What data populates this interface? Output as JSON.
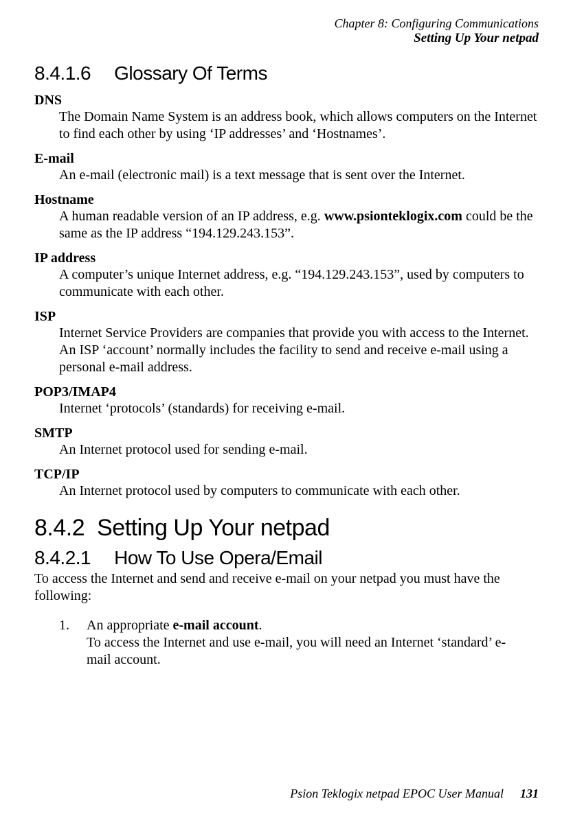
{
  "header": {
    "chapter": "Chapter 8:  Configuring Communications",
    "section": "Setting Up Your netpad"
  },
  "h1": {
    "num": "8.4.1.6",
    "title": "Glossary Of Terms"
  },
  "glossary": [
    {
      "term": "DNS",
      "def": "The Domain Name System is an address book, which allows computers on the Internet to find each other by using ‘IP addresses’ and ‘Hostnames’."
    },
    {
      "term": "E-mail",
      "def": "An e-mail (electronic mail) is a text message that is sent over the Internet."
    },
    {
      "term": "Hostname",
      "def_pre": "A human readable version of an IP address, e.g. ",
      "def_bold": "www.psionteklogix.com",
      "def_post": " could be the same as the IP address “194.129.243.153”."
    },
    {
      "term": "IP address",
      "def": "A computer’s unique Internet address, e.g. “194.129.243.153”, used by computers to communicate with each other."
    },
    {
      "term": "ISP",
      "def": "Internet Service Providers are companies that provide you with access to the Internet. An ISP ‘account’ normally includes the facility to send and receive e-mail using a personal e-mail address."
    },
    {
      "term": "POP3/IMAP4",
      "def": "Internet ‘protocols’ (standards) for receiving e-mail."
    },
    {
      "term": "SMTP",
      "def": "An Internet protocol used for sending e-mail."
    },
    {
      "term": "TCP/IP",
      "def": "An Internet protocol used by computers to communicate with each other."
    }
  ],
  "h2": {
    "num": "8.4.2",
    "title": "Setting Up Your netpad"
  },
  "h3": {
    "num": "8.4.2.1",
    "title": "How To Use Opera/Email"
  },
  "intro": "To access the Internet and send and receive e-mail on your netpad you must have the following:",
  "list": {
    "marker": "1.",
    "pre": "An appropriate ",
    "bold": "e-mail account",
    "post": ".",
    "line2": "To access the Internet and use e-mail, you will need an Internet ‘standard’ e-mail account."
  },
  "footer": {
    "text": "Psion Teklogix netpad EPOC User Manual",
    "page": "131"
  }
}
